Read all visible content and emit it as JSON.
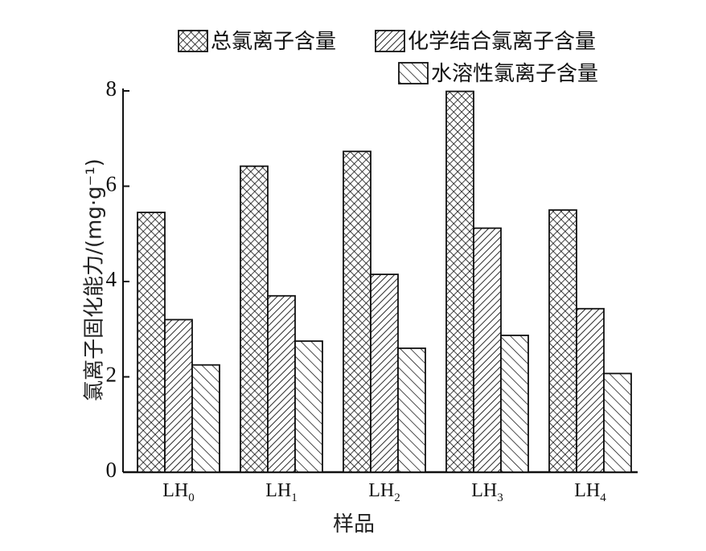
{
  "chart_data": {
    "type": "bar",
    "xlabel": "样品",
    "ylabel": "氯离子固化能力/(mg·g⁻¹)",
    "ylim": [
      0,
      8
    ],
    "yticks": [
      "0",
      "2",
      "4",
      "6",
      "8"
    ],
    "categories": [
      {
        "base": "LH",
        "sub": "0"
      },
      {
        "base": "LH",
        "sub": "1"
      },
      {
        "base": "LH",
        "sub": "2"
      },
      {
        "base": "LH",
        "sub": "3"
      },
      {
        "base": "LH",
        "sub": "4"
      }
    ],
    "series": [
      {
        "name": "总氯离子含量",
        "pattern": "crosshatch",
        "values": [
          5.45,
          6.42,
          6.73,
          7.99,
          5.5
        ]
      },
      {
        "name": "化学结合氯离子含量",
        "pattern": "forward-diagonal",
        "values": [
          3.2,
          3.7,
          4.15,
          5.12,
          3.43
        ]
      },
      {
        "name": "水溶性氯离子含量",
        "pattern": "back-diagonal",
        "values": [
          2.25,
          2.75,
          2.6,
          2.87,
          2.07
        ]
      }
    ],
    "legend_position": "top-right",
    "grid": false
  }
}
